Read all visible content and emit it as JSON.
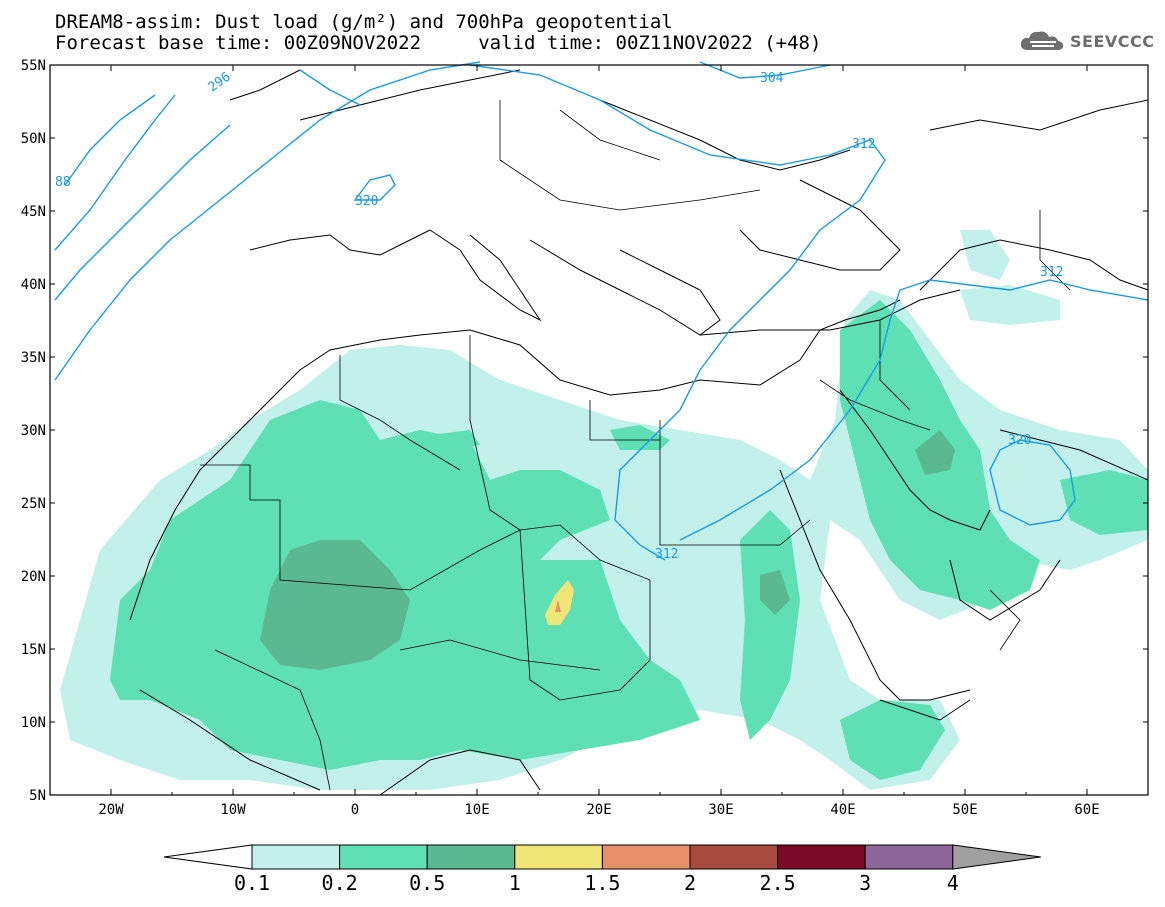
{
  "title": {
    "line1": "DREAM8-assim: Dust load (g/m²) and 700hPa geopotential",
    "line2": "Forecast base time: 00Z09NOV2022     valid time: 00Z11NOV2022 (+48)"
  },
  "logo": {
    "text": "SEEVCCC",
    "icon": "cloud-icon"
  },
  "map": {
    "lon_range": [
      -25,
      65
    ],
    "lat_range": [
      5,
      55
    ],
    "lat_labels": [
      "55N",
      "50N",
      "45N",
      "40N",
      "35N",
      "30N",
      "25N",
      "20N",
      "15N",
      "10N",
      "5N"
    ],
    "lon_labels": [
      "20W",
      "10W",
      "0",
      "10E",
      "20E",
      "30E",
      "40E",
      "50E",
      "60E"
    ]
  },
  "contours": {
    "color": "#1a9be6",
    "labels": [
      "296",
      "304",
      "312",
      "320",
      "312",
      "320",
      "312",
      "88"
    ]
  },
  "colorbar": {
    "ticks": [
      "0.1",
      "0.2",
      "0.5",
      "1",
      "1.5",
      "2",
      "2.5",
      "3",
      "4"
    ],
    "colors": [
      "#ffffff",
      "#c2f0ea",
      "#5ee0b4",
      "#5ab893",
      "#f0e678",
      "#e8906a",
      "#a84a40",
      "#7a0a28",
      "#8c6699",
      "#a0a0a0"
    ]
  }
}
